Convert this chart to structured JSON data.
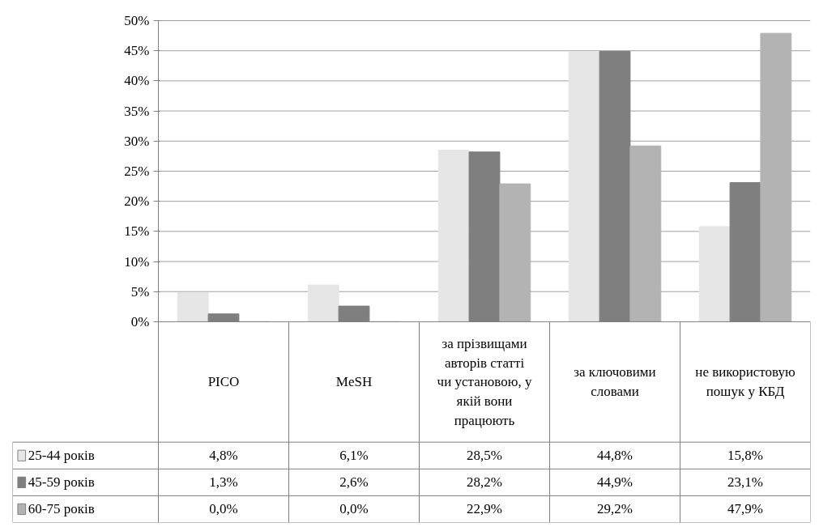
{
  "chart_data": {
    "type": "bar",
    "categories": [
      "PICO",
      "MeSH",
      "за прізвищами авторів статті чи установою, у якій вони працюють",
      "за ключовими словами",
      "не використовую пошук у КБД"
    ],
    "series": [
      {
        "name": "25-44 років",
        "color": "#e6e6e6",
        "values": [
          4.8,
          6.1,
          28.5,
          44.8,
          15.8
        ],
        "value_labels": [
          "4,8%",
          "6,1%",
          "28,5%",
          "44,8%",
          "15,8%"
        ]
      },
      {
        "name": "45-59 років",
        "color": "#7f7f7f",
        "values": [
          1.3,
          2.6,
          28.2,
          44.9,
          23.1
        ],
        "value_labels": [
          "1,3%",
          "2,6%",
          "28,2%",
          "44,9%",
          "23,1%"
        ]
      },
      {
        "name": "60-75 років",
        "color": "#b3b3b3",
        "values": [
          0.0,
          0.0,
          22.9,
          29.2,
          47.9
        ],
        "value_labels": [
          "0,0%",
          "0,0%",
          "22,9%",
          "29,2%",
          "47,9%"
        ]
      }
    ],
    "ylim": [
      0,
      50
    ],
    "yticks": [
      {
        "value": 0,
        "label": "0%"
      },
      {
        "value": 5,
        "label": "5%"
      },
      {
        "value": 10,
        "label": "10%"
      },
      {
        "value": 15,
        "label": "15%"
      },
      {
        "value": 20,
        "label": "20%"
      },
      {
        "value": 25,
        "label": "25%"
      },
      {
        "value": 30,
        "label": "30%"
      },
      {
        "value": 35,
        "label": "35%"
      },
      {
        "value": 40,
        "label": "40%"
      },
      {
        "value": 45,
        "label": "45%"
      },
      {
        "value": 50,
        "label": "50%"
      }
    ],
    "grid": "y",
    "legend": "bottom left"
  }
}
